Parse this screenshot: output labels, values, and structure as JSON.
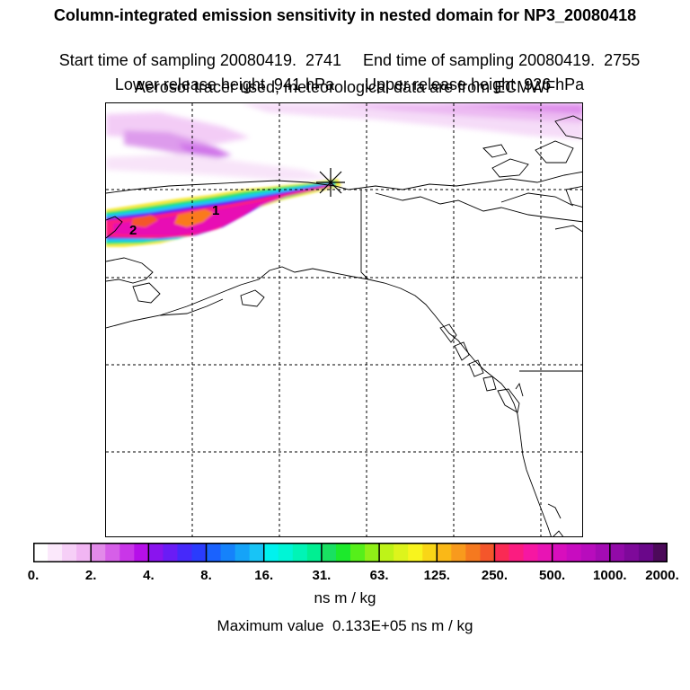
{
  "header": {
    "title": "Column-integrated emission sensitivity in nested domain for NP3_20080418",
    "start_time": "Start time of sampling 20080419.  2741",
    "end_time": "End time of sampling 20080419.  2755",
    "lower_height": "Lower release height  941 hPa",
    "upper_height": "Upper release height  926 hPa",
    "tracer_info": "Aerosol tracer used, meteorological data are from ECMWF"
  },
  "map": {
    "plume_labels": [
      "1",
      "2"
    ],
    "release_marker": "release-point-star",
    "colors": {
      "land_outline": "#000000",
      "grid": "#000000",
      "background": "#ffffff"
    }
  },
  "colorbar": {
    "tick_labels": [
      "0.",
      "2.",
      "4.",
      "8.",
      "16.",
      "31.",
      "63.",
      "125.",
      "250.",
      "500.",
      "1000.",
      "2000."
    ],
    "colors": [
      "#ffffff",
      "#fbe8fb",
      "#f6cff7",
      "#f1b5f3",
      "#e28ae9",
      "#d65fe8",
      "#c936e8",
      "#b60fe9",
      "#8a14ee",
      "#6a1cf5",
      "#4629fa",
      "#2a3cfd",
      "#1a62fe",
      "#1582fb",
      "#15a3f8",
      "#18c4f6",
      "#00f2ee",
      "#00f5d6",
      "#00f4b6",
      "#00ef92",
      "#19e062",
      "#1ce92c",
      "#56ef1a",
      "#8fef17",
      "#bef318",
      "#ddf41c",
      "#f8f41e",
      "#f9d617",
      "#fab817",
      "#f89a1d",
      "#f5791f",
      "#f4562b",
      "#fa2a54",
      "#fb1c80",
      "#f617a2",
      "#e814b4",
      "#d80ebd",
      "#c80cc0",
      "#b80cbd",
      "#a40bb4",
      "#920aa8",
      "#7e099a",
      "#6a078a",
      "#4c0a5a"
    ],
    "units": "ns m / kg",
    "max_value": "Maximum value  0.133E+05 ns m / kg"
  }
}
